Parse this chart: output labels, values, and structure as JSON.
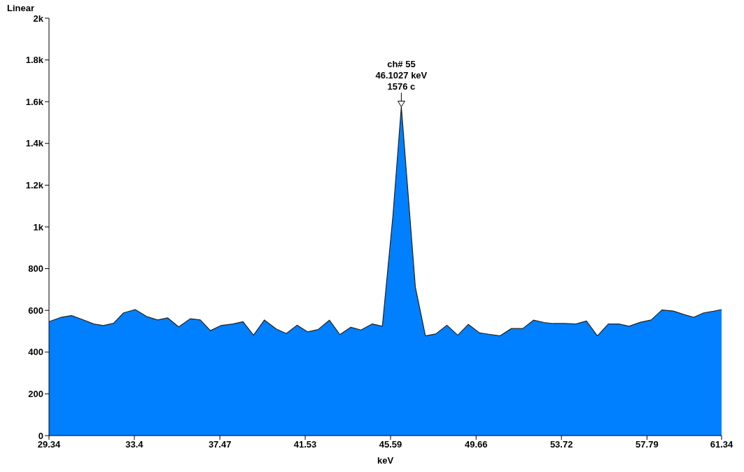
{
  "chart_data": {
    "type": "area",
    "xlabel": "keV",
    "annotations": [
      "Linear",
      {
        "text": "ch# 55\n46.1027 keV\n1576 c",
        "x": 46.1027,
        "y": 1576
      }
    ],
    "x": [
      29.34,
      29.92,
      30.41,
      30.89,
      31.47,
      31.92,
      32.41,
      32.89,
      33.44,
      34.02,
      34.51,
      34.99,
      35.51,
      36.06,
      36.54,
      37.02,
      37.51,
      38.09,
      38.57,
      39.07,
      39.59,
      40.15,
      40.63,
      41.14,
      41.65,
      42.14,
      42.68,
      43.18,
      43.7,
      44.18,
      44.72,
      45.2,
      45.7,
      46.1027,
      46.77,
      47.25,
      47.74,
      48.27,
      48.79,
      49.29,
      49.83,
      50.32,
      50.8,
      51.34,
      51.88,
      52.39,
      52.9,
      53.33,
      53.87,
      54.41,
      54.91,
      55.43,
      55.95,
      56.45,
      56.94,
      57.48,
      57.99,
      58.5,
      59.04,
      59.52,
      60.01,
      60.49,
      60.97,
      61.34
    ],
    "values": [
      546,
      567,
      575,
      558,
      535,
      527,
      538,
      588,
      604,
      569,
      554,
      564,
      521,
      560,
      554,
      503,
      527,
      535,
      546,
      481,
      554,
      511,
      489,
      529,
      497,
      508,
      553,
      484,
      519,
      506,
      535,
      524,
      1050,
      1576,
      712,
      478,
      487,
      529,
      481,
      533,
      492,
      485,
      478,
      513,
      513,
      553,
      542,
      537,
      537,
      535,
      549,
      478,
      535,
      535,
      524,
      543,
      554,
      602,
      597,
      581,
      567,
      588,
      596,
      604
    ],
    "color": "#0080ff",
    "xlim": [
      29.34,
      61.34
    ],
    "xticks": [
      29.34,
      33.4,
      37.47,
      41.53,
      45.59,
      49.66,
      53.72,
      57.79,
      61.34
    ],
    "ylim": [
      0,
      2000
    ],
    "yticks": [
      0,
      200,
      400,
      600,
      800,
      {
        "value": 1000,
        "label": "1k"
      },
      {
        "value": 1200,
        "label": "1.2k"
      },
      {
        "value": 1400,
        "label": "1.4k"
      },
      {
        "value": 1600,
        "label": "1.6k"
      },
      {
        "value": 1800,
        "label": "1.8k"
      },
      {
        "value": 2000,
        "label": "2k"
      }
    ]
  }
}
